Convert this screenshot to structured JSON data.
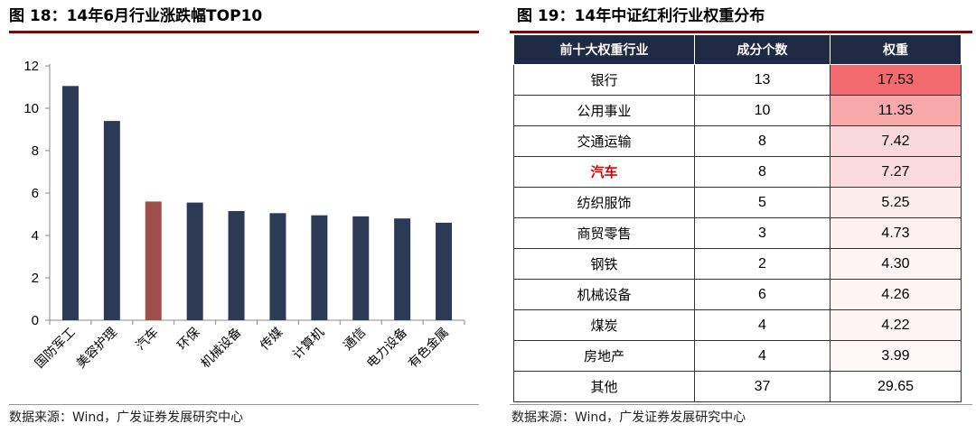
{
  "left": {
    "title": "图 18：14年6月行业涨跌幅TOP10",
    "source": "数据来源：Wind，广发证券发展研究中心"
  },
  "right": {
    "title": "图 19：14年中证红利行业权重分布",
    "source": "数据来源：Wind，广发证券发展研究中心",
    "headers": [
      "前十大权重行业",
      "成分个数",
      "权重"
    ],
    "rows": [
      {
        "name": "银行",
        "count": "13",
        "weight": "17.53",
        "bg": "#f36a6e"
      },
      {
        "name": "公用事业",
        "count": "10",
        "weight": "11.35",
        "bg": "#f7a9ab"
      },
      {
        "name": "交通运输",
        "count": "8",
        "weight": "7.42",
        "bg": "#fbd8d9"
      },
      {
        "name": "汽车",
        "count": "8",
        "weight": "7.27",
        "bg": "#fbdadb",
        "highlight": true
      },
      {
        "name": "纺织服饰",
        "count": "5",
        "weight": "5.25",
        "bg": "#fcecec"
      },
      {
        "name": "商贸零售",
        "count": "3",
        "weight": "4.73",
        "bg": "#fdf0f0"
      },
      {
        "name": "钢铁",
        "count": "2",
        "weight": "4.30",
        "bg": "#fdf4f4"
      },
      {
        "name": "机械设备",
        "count": "6",
        "weight": "4.26",
        "bg": "#fdf4f4"
      },
      {
        "name": "煤炭",
        "count": "4",
        "weight": "4.22",
        "bg": "#fdf5f5"
      },
      {
        "name": "房地产",
        "count": "4",
        "weight": "3.99",
        "bg": "#fdf7f7"
      },
      {
        "name": "其他",
        "count": "37",
        "weight": "29.65",
        "bg": "#ffffff"
      }
    ]
  },
  "chart_data": {
    "type": "bar",
    "categories": [
      "国防军工",
      "美容护理",
      "汽车",
      "环保",
      "机械设备",
      "传媒",
      "计算机",
      "通信",
      "电力设备",
      "有色金属"
    ],
    "values": [
      11.05,
      9.4,
      5.6,
      5.55,
      5.15,
      5.05,
      4.95,
      4.9,
      4.8,
      4.6
    ],
    "highlight_category": "汽车",
    "colors": {
      "default": "#2d3a56",
      "highlight": "#9e4f4b"
    },
    "ylim": [
      0,
      12
    ],
    "yticks": [
      0,
      2,
      4,
      6,
      8,
      10,
      12
    ],
    "grid": false,
    "title": "",
    "xlabel": "",
    "ylabel": ""
  }
}
